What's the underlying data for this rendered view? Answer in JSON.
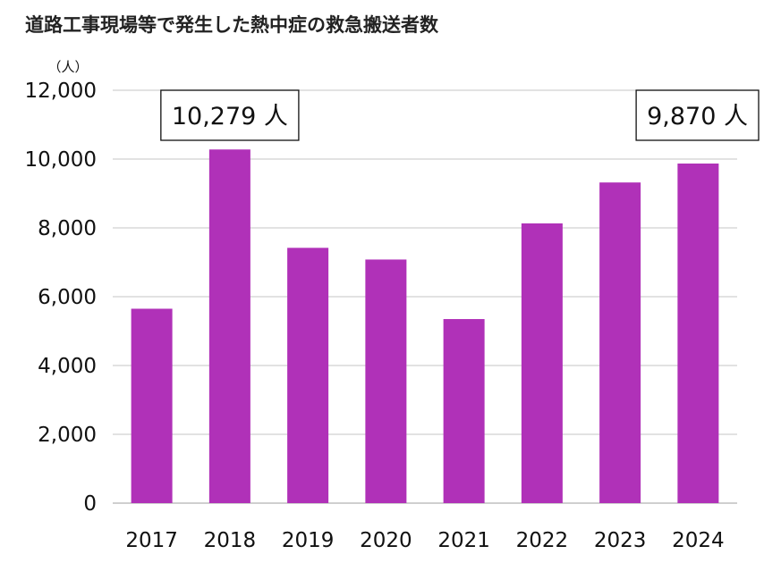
{
  "chart_data": {
    "type": "bar",
    "title": "道路工事現場等で発生した熱中症の救急搬送者数",
    "unit_label": "（人）",
    "categories": [
      "2017",
      "2018",
      "2019",
      "2020",
      "2021",
      "2022",
      "2023",
      "2024"
    ],
    "values": [
      5650,
      10279,
      7420,
      7080,
      5350,
      8130,
      9320,
      9870
    ],
    "ylim": [
      0,
      12000
    ],
    "y_ticks": [
      "0",
      "2,000",
      "4,000",
      "6,000",
      "8,000",
      "10,000",
      "12,000"
    ],
    "y_tick_values": [
      0,
      2000,
      4000,
      6000,
      8000,
      10000,
      12000
    ],
    "grid": true,
    "bar_color": "#b031b8",
    "grid_color": "#d9d9d9",
    "callouts": [
      {
        "category": "2018",
        "text": "10,279 人"
      },
      {
        "category": "2024",
        "text": "9,870 人"
      }
    ]
  }
}
